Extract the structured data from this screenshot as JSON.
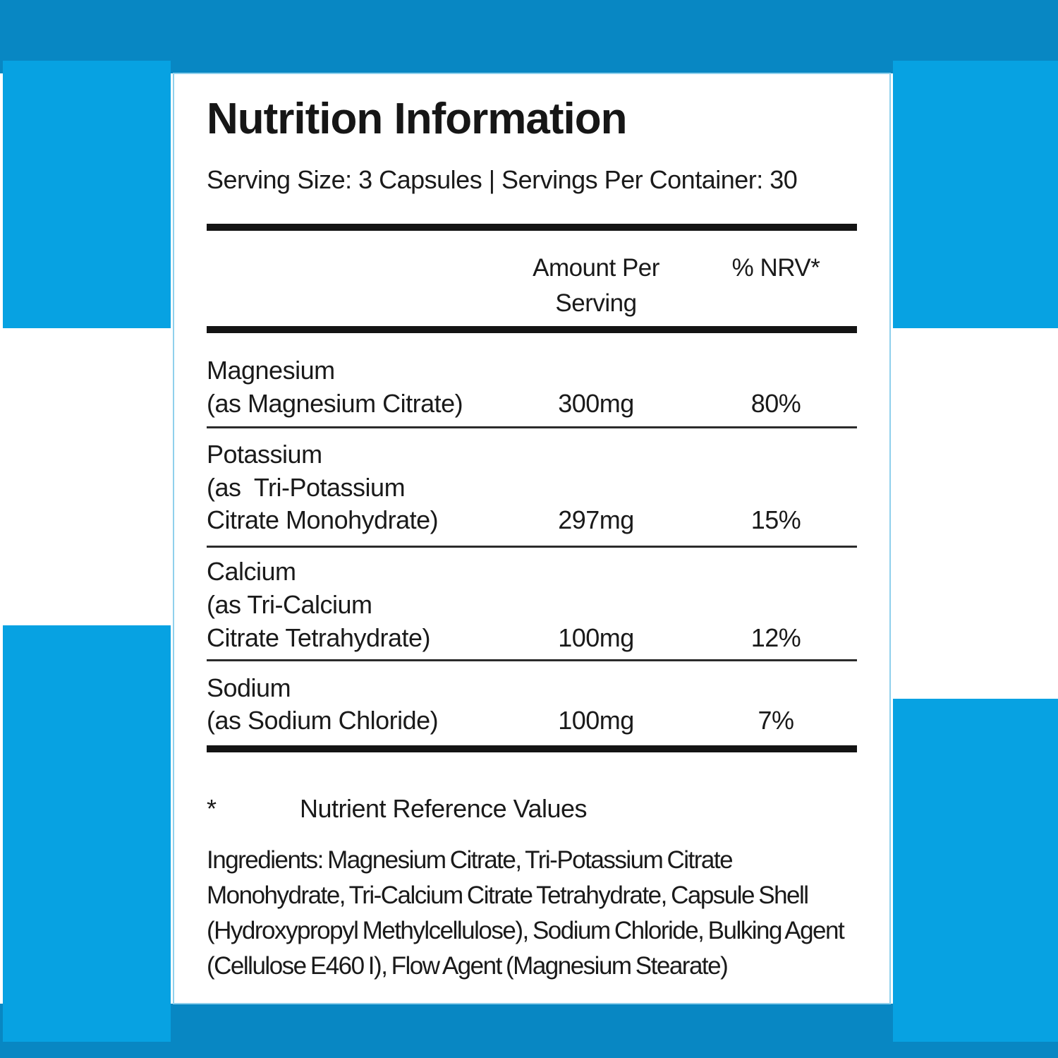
{
  "colors": {
    "dark_blue": "#0887c3",
    "light_blue": "#07a2e2",
    "card_border": "#8fd0ec",
    "text": "#1a1a1a",
    "rule": "#141414"
  },
  "label": {
    "title": "Nutrition Information",
    "serving_line": "Serving Size: 3 Capsules  |  Servings Per Container: 30",
    "columns": {
      "amount": "Amount Per Serving",
      "nrv": "% NRV*"
    },
    "rows": [
      {
        "name_lines": [
          "Magnesium",
          "(as Magnesium Citrate)"
        ],
        "amount": "300mg",
        "nrv": "80%"
      },
      {
        "name_lines": [
          "Potassium",
          "(as  Tri-Potassium",
          "Citrate Monohydrate)"
        ],
        "amount": "297mg",
        "nrv": "15%"
      },
      {
        "name_lines": [
          "Calcium",
          "(as Tri-Calcium",
          "Citrate Tetrahydrate)"
        ],
        "amount": "100mg",
        "nrv": "12%"
      },
      {
        "name_lines": [
          "Sodium",
          "(as Sodium Chloride)"
        ],
        "amount": "100mg",
        "nrv": "7%"
      }
    ],
    "footnote": {
      "symbol": "*",
      "text": "Nutrient Reference Values"
    },
    "ingredients": "Ingredients: Magnesium Citrate, Tri-Potassium Citrate Monohydrate, Tri-Calcium Citrate Tetrahydrate, Capsule Shell (Hydroxypropyl Methylcellulose), Sodium Chloride, Bulking Agent (Cellulose E460 I), Flow Agent (Magnesium Stearate)"
  }
}
